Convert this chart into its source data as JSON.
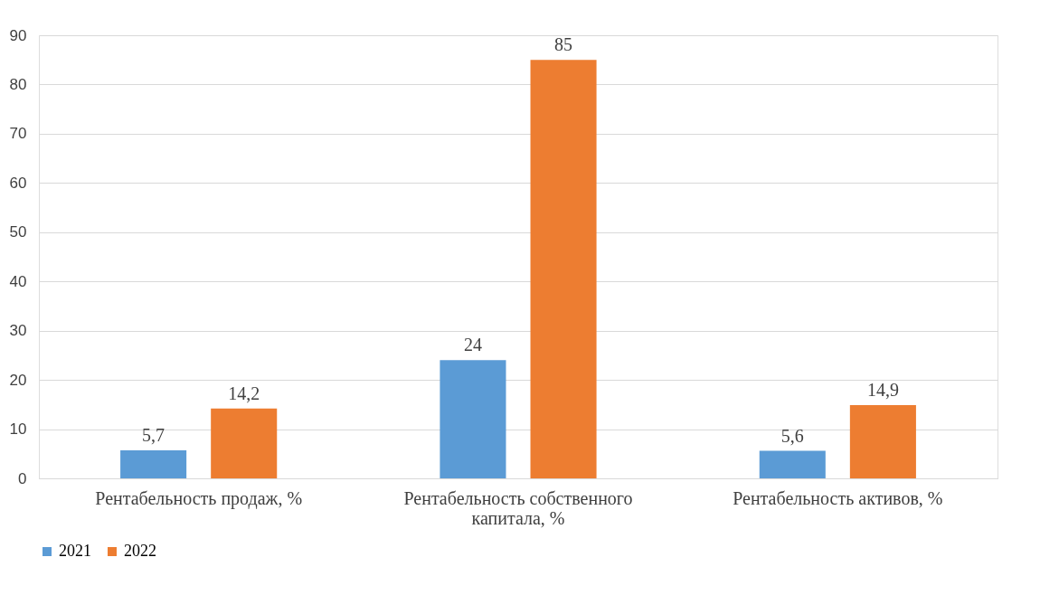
{
  "chart_data": {
    "type": "bar",
    "categories": [
      "Рентабельность продаж, %",
      "Рентабельность собственного капитала, %",
      "Рентабельность активов, %"
    ],
    "series": [
      {
        "name": "2021",
        "color": "#5b9bd5",
        "values": [
          5.7,
          24,
          5.6
        ],
        "value_labels": [
          "5,7",
          "24",
          "5,6"
        ]
      },
      {
        "name": "2022",
        "color": "#ed7d31",
        "values": [
          14.2,
          85,
          14.9
        ],
        "value_labels": [
          "14,2",
          "85",
          "14,9"
        ]
      }
    ],
    "ylim": [
      0,
      90
    ],
    "yticks": [
      0,
      10,
      20,
      30,
      40,
      50,
      60,
      70,
      80,
      90
    ],
    "grid": "y",
    "legend": "bottom"
  }
}
